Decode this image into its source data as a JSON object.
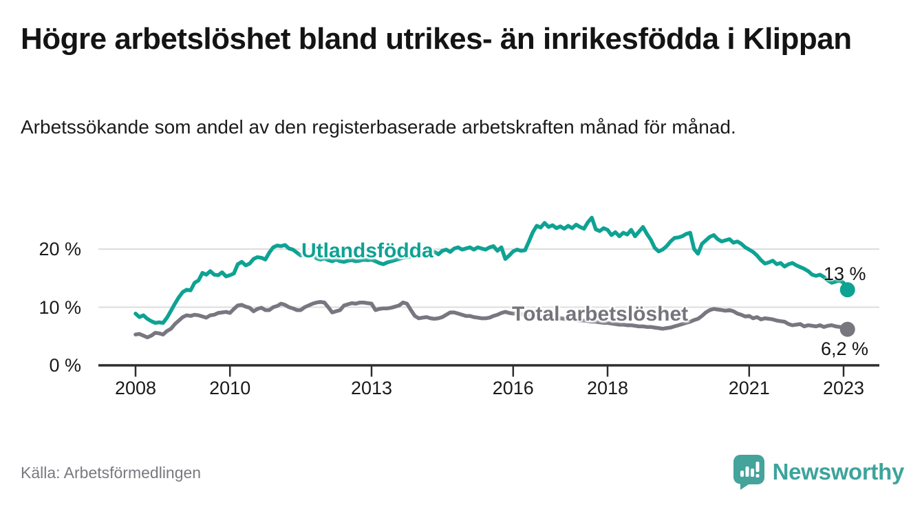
{
  "header": {
    "title": "Högre arbetslöshet bland utrikes- än inrikesfödda i Klippan",
    "subtitle": "Arbetssökande som andel av den registerbaserade arbetskraften månad för månad."
  },
  "chart_data": {
    "type": "line",
    "title": "Högre arbetslöshet bland utrikes- än inrikesfödda i Klippan",
    "subtitle": "Arbetssökande som andel av den registerbaserade arbetskraften månad för månad.",
    "unit": "%",
    "x_start": "2008-01",
    "x_end": "2023-02",
    "x_tick_years": [
      2008,
      2010,
      2013,
      2016,
      2018,
      2021,
      2023
    ],
    "y_ticks": [
      {
        "value": 0,
        "label": "0 %"
      },
      {
        "value": 10,
        "label": "10 %"
      },
      {
        "value": 20,
        "label": "20 %"
      }
    ],
    "ylim": [
      0,
      27
    ],
    "grid": "horizontal gridlines at 10 and 20, dark baseline at 0",
    "legend_position": "inline labels on lines, end-value labels at right",
    "colors": {
      "utlandsfodda": "#0ea293",
      "total": "#787780",
      "grid": "#dcdcdc",
      "axis": "#2d2d2d"
    },
    "series": [
      {
        "name": "Utlandsfödda",
        "color": "#0ea293",
        "end_label": "13 %",
        "end_value": 13.0,
        "values": [
          8.9,
          8.3,
          8.6,
          8.0,
          7.6,
          7.3,
          7.4,
          7.3,
          8.2,
          9.4,
          10.6,
          11.7,
          12.6,
          13.0,
          12.9,
          14.2,
          14.6,
          15.9,
          15.6,
          16.2,
          15.6,
          15.5,
          16.0,
          15.3,
          15.5,
          15.8,
          17.4,
          17.8,
          17.2,
          17.5,
          18.3,
          18.6,
          18.5,
          18.2,
          19.4,
          20.3,
          20.6,
          20.5,
          20.7,
          20.1,
          19.9,
          19.4,
          18.9,
          19.2,
          18.7,
          19.2,
          18.4,
          18.2,
          18.4,
          18.1,
          17.9,
          18.2,
          17.9,
          17.8,
          18.0,
          18.1,
          17.9,
          18.0,
          18.2,
          18.1,
          18.2,
          17.9,
          17.6,
          17.4,
          17.7,
          17.9,
          18.1,
          18.3,
          18.5,
          18.6,
          18.7,
          18.8,
          18.8,
          19.0,
          18.7,
          19.3,
          19.5,
          19.1,
          19.7,
          19.9,
          19.5,
          20.1,
          20.3,
          19.9,
          20.1,
          20.3,
          19.9,
          20.3,
          20.1,
          19.9,
          20.3,
          20.5,
          19.7,
          20.3,
          18.3,
          18.9,
          19.6,
          19.9,
          19.7,
          19.8,
          21.3,
          22.9,
          24.0,
          23.7,
          24.5,
          23.8,
          24.1,
          23.6,
          23.9,
          23.5,
          24.0,
          23.6,
          24.2,
          23.8,
          23.5,
          24.6,
          25.4,
          23.4,
          23.1,
          23.6,
          23.3,
          22.4,
          22.9,
          22.2,
          22.8,
          22.5,
          23.3,
          22.2,
          23.0,
          23.8,
          22.6,
          21.6,
          20.2,
          19.6,
          19.9,
          20.5,
          21.3,
          21.9,
          22.0,
          22.2,
          22.6,
          22.8,
          20.0,
          19.2,
          20.9,
          21.5,
          22.1,
          22.4,
          21.7,
          21.3,
          21.5,
          21.7,
          21.1,
          21.3,
          20.9,
          20.3,
          19.9,
          19.5,
          18.9,
          18.1,
          17.5,
          17.7,
          18.0,
          17.4,
          17.6,
          17.0,
          17.4,
          17.6,
          17.2,
          16.9,
          16.6,
          16.2,
          15.6,
          15.4,
          15.6,
          15.2,
          14.6,
          14.2,
          14.4,
          14.6,
          14.2,
          13.0
        ]
      },
      {
        "name": "Total arbetslöshet",
        "color": "#787780",
        "end_label": "6,2 %",
        "end_value": 6.2,
        "values": [
          5.3,
          5.4,
          5.1,
          4.8,
          5.1,
          5.6,
          5.5,
          5.3,
          5.9,
          6.3,
          7.1,
          7.7,
          8.3,
          8.6,
          8.5,
          8.7,
          8.6,
          8.4,
          8.2,
          8.6,
          8.7,
          9.0,
          9.1,
          9.2,
          9.0,
          9.7,
          10.3,
          10.4,
          10.1,
          9.9,
          9.3,
          9.7,
          9.9,
          9.5,
          9.5,
          10.0,
          10.2,
          10.6,
          10.4,
          10.0,
          9.8,
          9.5,
          9.5,
          10.0,
          10.3,
          10.6,
          10.8,
          10.9,
          10.8,
          10.0,
          9.1,
          9.3,
          9.5,
          10.3,
          10.5,
          10.7,
          10.6,
          10.8,
          10.8,
          10.7,
          10.6,
          9.5,
          9.7,
          9.8,
          9.8,
          9.9,
          10.1,
          10.3,
          10.8,
          10.6,
          9.5,
          8.5,
          8.1,
          8.2,
          8.3,
          8.1,
          8.0,
          8.1,
          8.3,
          8.7,
          9.1,
          9.1,
          8.9,
          8.7,
          8.5,
          8.5,
          8.3,
          8.2,
          8.1,
          8.1,
          8.2,
          8.5,
          8.7,
          9.0,
          9.2,
          9.0,
          8.9,
          8.9,
          8.8,
          8.7,
          8.6,
          8.5,
          8.5,
          8.4,
          8.3,
          8.3,
          8.2,
          8.1,
          8.1,
          8.0,
          7.9,
          7.9,
          7.8,
          7.7,
          7.7,
          7.6,
          7.5,
          7.5,
          7.4,
          7.3,
          7.3,
          7.2,
          7.1,
          7.0,
          7.0,
          6.9,
          6.9,
          6.8,
          6.7,
          6.7,
          6.6,
          6.6,
          6.5,
          6.4,
          6.3,
          6.4,
          6.5,
          6.7,
          6.9,
          7.1,
          7.3,
          7.5,
          7.8,
          8.0,
          8.5,
          9.1,
          9.5,
          9.7,
          9.6,
          9.5,
          9.4,
          9.5,
          9.3,
          8.9,
          8.7,
          8.4,
          8.5,
          8.1,
          8.3,
          7.9,
          8.1,
          8.0,
          7.9,
          7.7,
          7.6,
          7.5,
          7.1,
          6.9,
          7.0,
          7.1,
          6.7,
          6.9,
          6.8,
          6.7,
          6.9,
          6.6,
          6.8,
          6.9,
          6.7,
          6.6,
          6.5,
          6.2
        ]
      }
    ]
  },
  "footer": {
    "source": "Källa: Arbetsförmedlingen",
    "brand": "Newsworthy"
  }
}
